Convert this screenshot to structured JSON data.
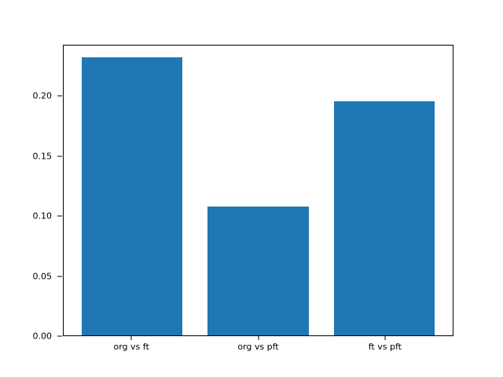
{
  "chart_data": {
    "type": "bar",
    "title": "",
    "xlabel": "",
    "ylabel": "",
    "categories": [
      "org vs ft",
      "org vs pft",
      "ft vs pft"
    ],
    "values": [
      0.233,
      0.108,
      0.196
    ],
    "ylim": [
      0,
      0.2426
    ],
    "yticks": [
      0.0,
      0.05,
      0.1,
      0.15,
      0.2
    ],
    "ytick_labels": [
      "0.00",
      "0.05",
      "0.10",
      "0.15",
      "0.20"
    ],
    "bar_color": "#1f77b4",
    "bar_width_fraction": 0.8,
    "axis_margin_fraction": 0.05,
    "grid": false,
    "legend_position": "none",
    "background_color": "#ffffff",
    "spine_color": "#000000"
  }
}
